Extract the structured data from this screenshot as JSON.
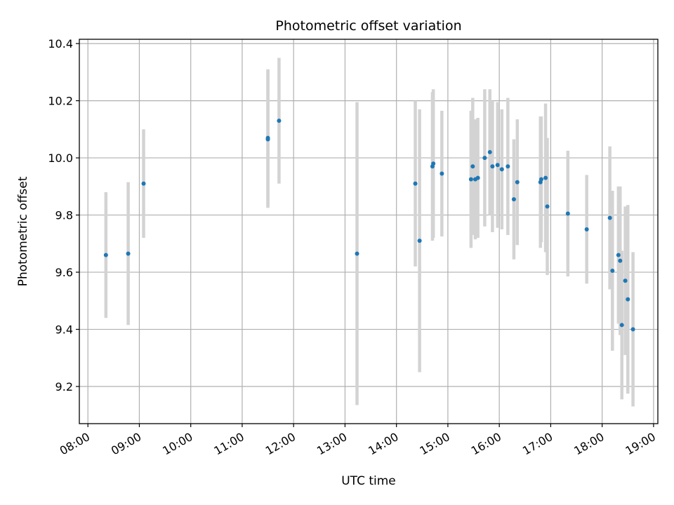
{
  "chart_data": {
    "type": "scatter",
    "title": "Photometric offset variation",
    "xlabel": "UTC time",
    "ylabel": "Photometric offset",
    "x_axis": {
      "type": "time",
      "range": [
        "07:50",
        "19:05"
      ]
    },
    "y_axis": {
      "range": [
        9.07,
        10.415
      ]
    },
    "grid": true,
    "x_ticks": [
      "08:00",
      "09:00",
      "10:00",
      "11:00",
      "12:00",
      "13:00",
      "14:00",
      "15:00",
      "16:00",
      "17:00",
      "18:00",
      "19:00"
    ],
    "y_ticks": [
      "9.2",
      "9.4",
      "9.6",
      "9.8",
      "10.0",
      "10.2",
      "10.4"
    ],
    "colors": {
      "points": "#1f77b4",
      "errorbars": "#d3d3d3",
      "grid": "#b0b0b0"
    },
    "points": [
      {
        "x": "08:21",
        "y": 9.66,
        "err": 0.22
      },
      {
        "x": "08:47",
        "y": 9.665,
        "err": 0.25
      },
      {
        "x": "09:05",
        "y": 9.91,
        "err": 0.19
      },
      {
        "x": "11:30",
        "y": 10.065,
        "err": 0.24
      },
      {
        "x": "11:30",
        "y": 10.07,
        "err": 0.24
      },
      {
        "x": "11:43",
        "y": 10.13,
        "err": 0.22
      },
      {
        "x": "13:14",
        "y": 9.665,
        "err": 0.53
      },
      {
        "x": "14:22",
        "y": 9.91,
        "err": 0.29
      },
      {
        "x": "14:27",
        "y": 9.71,
        "err": 0.46
      },
      {
        "x": "14:42",
        "y": 9.97,
        "err": 0.26
      },
      {
        "x": "14:43",
        "y": 9.98,
        "err": 0.26
      },
      {
        "x": "14:53",
        "y": 9.945,
        "err": 0.22
      },
      {
        "x": "15:27",
        "y": 9.925,
        "err": 0.24
      },
      {
        "x": "15:29",
        "y": 9.97,
        "err": 0.24
      },
      {
        "x": "15:32",
        "y": 9.925,
        "err": 0.21
      },
      {
        "x": "15:35",
        "y": 9.93,
        "err": 0.21
      },
      {
        "x": "15:43",
        "y": 10.0,
        "err": 0.24
      },
      {
        "x": "15:49",
        "y": 10.02,
        "err": 0.22
      },
      {
        "x": "15:52",
        "y": 9.97,
        "err": 0.23
      },
      {
        "x": "15:58",
        "y": 9.975,
        "err": 0.22
      },
      {
        "x": "16:03",
        "y": 9.96,
        "err": 0.21
      },
      {
        "x": "16:10",
        "y": 9.97,
        "err": 0.24
      },
      {
        "x": "16:17",
        "y": 9.855,
        "err": 0.21
      },
      {
        "x": "16:21",
        "y": 9.915,
        "err": 0.22
      },
      {
        "x": "16:48",
        "y": 9.915,
        "err": 0.23
      },
      {
        "x": "16:49",
        "y": 9.925,
        "err": 0.22
      },
      {
        "x": "16:54",
        "y": 9.93,
        "err": 0.26
      },
      {
        "x": "16:56",
        "y": 9.83,
        "err": 0.24
      },
      {
        "x": "17:20",
        "y": 9.805,
        "err": 0.22
      },
      {
        "x": "17:42",
        "y": 9.75,
        "err": 0.19
      },
      {
        "x": "18:09",
        "y": 9.79,
        "err": 0.25
      },
      {
        "x": "18:12",
        "y": 9.605,
        "err": 0.28
      },
      {
        "x": "18:19",
        "y": 9.66,
        "err": 0.24
      },
      {
        "x": "18:21",
        "y": 9.64,
        "err": 0.26
      },
      {
        "x": "18:23",
        "y": 9.415,
        "err": 0.26
      },
      {
        "x": "18:27",
        "y": 9.57,
        "err": 0.26
      },
      {
        "x": "18:30",
        "y": 9.505,
        "err": 0.33
      },
      {
        "x": "18:36",
        "y": 9.4,
        "err": 0.27
      }
    ]
  }
}
